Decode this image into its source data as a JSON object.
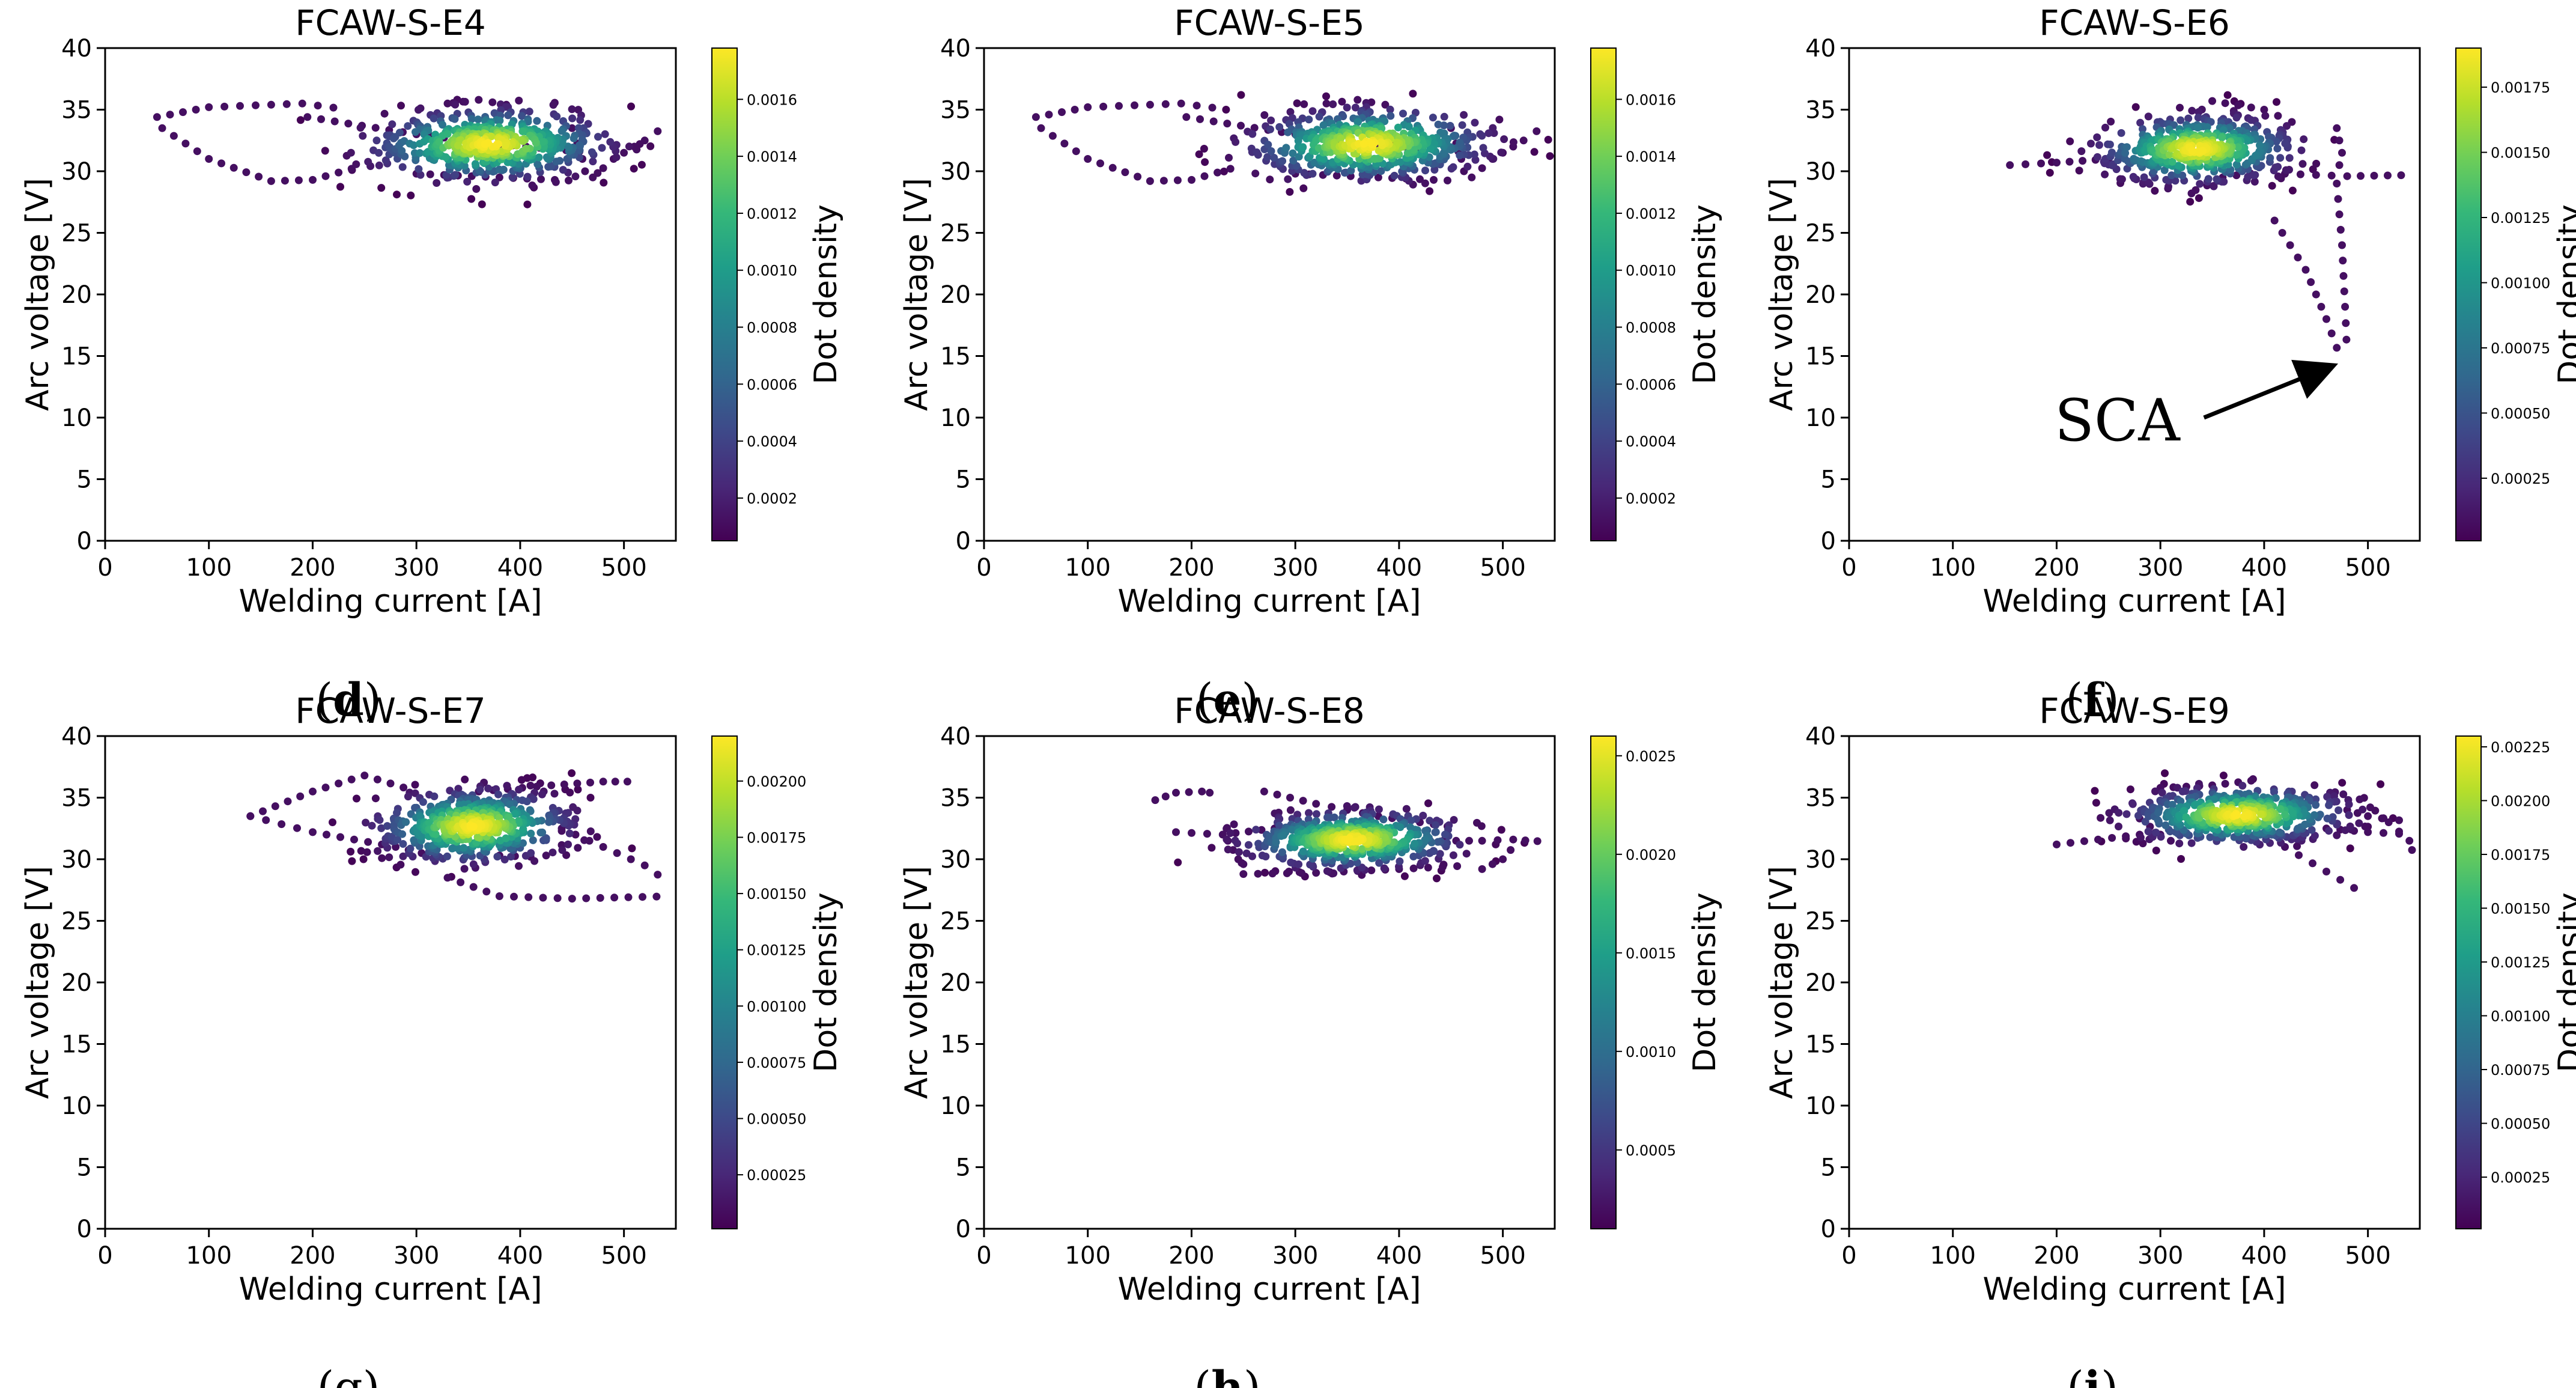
{
  "figure": {
    "colormap": [
      "#440154",
      "#482878",
      "#3e4989",
      "#31688e",
      "#26828e",
      "#1f9e89",
      "#35b779",
      "#6ece58",
      "#b5de2b",
      "#fde725"
    ],
    "axis_color": "#000000",
    "annotation": {
      "text": "SCA",
      "arrow_color": "#000000"
    }
  },
  "chart_data": [
    {
      "type": "scatter",
      "title": "FCAW-S-E4",
      "caption": "(d)",
      "caption_bold": "d",
      "xlabel": "Welding current [A]",
      "ylabel": "Arc voltage [V]",
      "xlim": [
        0,
        550
      ],
      "ylim": [
        0,
        40
      ],
      "xticks": [
        "0",
        "100",
        "200",
        "300",
        "400",
        "500"
      ],
      "yticks": [
        "0",
        "5",
        "10",
        "15",
        "20",
        "25",
        "30",
        "35",
        "40"
      ],
      "colorbar": {
        "label": "Dot density",
        "min": 5e-05,
        "max": 0.00178,
        "ticks": [
          "0.0002",
          "0.0004",
          "0.0006",
          "0.0008",
          "0.0010",
          "0.0012",
          "0.0014",
          "0.0016"
        ]
      },
      "center": [
        370,
        32.2
      ],
      "spread": [
        55,
        1.4
      ],
      "paths": [
        [
          [
            195,
            34.4
          ],
          [
            300,
            33
          ],
          [
            380,
            32.2
          ],
          [
            470,
            31.5
          ]
        ],
        [
          [
            470,
            29.5
          ],
          [
            490,
            31
          ],
          [
            520,
            32.5
          ],
          [
            545,
            34
          ]
        ],
        [
          [
            50,
            34.4
          ],
          [
            100,
            35.2
          ],
          [
            190,
            35.5
          ],
          [
            235,
            35
          ]
        ],
        [
          [
            55,
            33.5
          ],
          [
            100,
            31
          ],
          [
            160,
            29.2
          ],
          [
            200,
            29.3
          ],
          [
            250,
            30.5
          ]
        ],
        [
          [
            300,
            29.8
          ],
          [
            380,
            29.5
          ],
          [
            460,
            29.2
          ]
        ],
        [
          [
            330,
            35.5
          ],
          [
            360,
            35.8
          ],
          [
            400,
            35.2
          ]
        ],
        [
          [
            450,
            33.5
          ],
          [
            460,
            31
          ],
          [
            465,
            29
          ]
        ]
      ]
    },
    {
      "type": "scatter",
      "title": "FCAW-S-E5",
      "caption": "(e)",
      "caption_bold": "e",
      "xlabel": "Welding current [A]",
      "ylabel": "Arc voltage [V]",
      "xlim": [
        0,
        550
      ],
      "ylim": [
        0,
        40
      ],
      "xticks": [
        "0",
        "100",
        "200",
        "300",
        "400",
        "500"
      ],
      "yticks": [
        "0",
        "5",
        "10",
        "15",
        "20",
        "25",
        "30",
        "35",
        "40"
      ],
      "colorbar": {
        "label": "Dot density",
        "min": 5e-05,
        "max": 0.00178,
        "ticks": [
          "0.0002",
          "0.0004",
          "0.0006",
          "0.0008",
          "0.0010",
          "0.0012",
          "0.0014",
          "0.0016"
        ]
      },
      "center": [
        370,
        32.2
      ],
      "spread": [
        55,
        1.4
      ],
      "paths": [
        [
          [
            195,
            34.4
          ],
          [
            300,
            33
          ],
          [
            380,
            32.2
          ],
          [
            470,
            31.5
          ]
        ],
        [
          [
            470,
            29.5
          ],
          [
            490,
            31
          ],
          [
            520,
            32.5
          ],
          [
            545,
            34
          ]
        ],
        [
          [
            50,
            34.4
          ],
          [
            100,
            35.2
          ],
          [
            190,
            35.5
          ],
          [
            235,
            35
          ]
        ],
        [
          [
            55,
            33.5
          ],
          [
            100,
            31
          ],
          [
            160,
            29.2
          ],
          [
            200,
            29.3
          ],
          [
            250,
            30.5
          ]
        ],
        [
          [
            300,
            29.8
          ],
          [
            380,
            29.5
          ],
          [
            460,
            29.2
          ]
        ],
        [
          [
            330,
            35.5
          ],
          [
            360,
            35.8
          ],
          [
            400,
            35.2
          ]
        ],
        [
          [
            450,
            33.5
          ],
          [
            460,
            31
          ],
          [
            465,
            29
          ]
        ]
      ]
    },
    {
      "type": "scatter",
      "title": "FCAW-S-E6",
      "caption": "(f)",
      "caption_bold": "f",
      "xlabel": "Welding current [A]",
      "ylabel": "Arc voltage [V]",
      "xlim": [
        0,
        550
      ],
      "ylim": [
        0,
        40
      ],
      "xticks": [
        "0",
        "100",
        "200",
        "300",
        "400",
        "500"
      ],
      "yticks": [
        "0",
        "5",
        "10",
        "15",
        "20",
        "25",
        "30",
        "35",
        "40"
      ],
      "colorbar": {
        "label": "Dot density",
        "min": 1e-05,
        "max": 0.0019,
        "ticks": [
          "0.00025",
          "0.00050",
          "0.00075",
          "0.00100",
          "0.00125",
          "0.00150",
          "0.00175"
        ]
      },
      "center": [
        335,
        31.8
      ],
      "spread": [
        45,
        1.3
      ],
      "sca_arrow": {
        "from": [
          342,
          10
        ],
        "to": [
          460,
          14
        ]
      },
      "paths": [
        [
          [
            155,
            30.5
          ],
          [
            200,
            30.7
          ],
          [
            250,
            31
          ],
          [
            280,
            31.5
          ]
        ],
        [
          [
            420,
            29.8
          ],
          [
            480,
            29.6
          ],
          [
            545,
            29.7
          ]
        ],
        [
          [
            410,
            26
          ],
          [
            440,
            22
          ],
          [
            460,
            18
          ],
          [
            475,
            14.5
          ]
        ],
        [
          [
            470,
            29
          ],
          [
            475,
            24
          ],
          [
            478,
            19
          ],
          [
            480,
            15
          ]
        ],
        [
          [
            350,
            35.7
          ],
          [
            400,
            35
          ],
          [
            440,
            33.5
          ]
        ],
        [
          [
            470,
            33.5
          ],
          [
            475,
            31.5
          ],
          [
            470,
            29.5
          ]
        ],
        [
          [
            330,
            28.2
          ],
          [
            360,
            29.5
          ],
          [
            400,
            30
          ]
        ]
      ]
    },
    {
      "type": "scatter",
      "title": "FCAW-S-E7",
      "caption": "(g)",
      "caption_bold": "",
      "xlabel": "Welding current [A]",
      "ylabel": "Arc voltage [V]",
      "xlim": [
        0,
        550
      ],
      "ylim": [
        0,
        40
      ],
      "xticks": [
        "0",
        "100",
        "200",
        "300",
        "400",
        "500"
      ],
      "yticks": [
        "0",
        "5",
        "10",
        "15",
        "20",
        "25",
        "30",
        "35",
        "40"
      ],
      "colorbar": {
        "label": "Dot density",
        "min": 1e-05,
        "max": 0.0022,
        "ticks": [
          "0.00025",
          "0.00050",
          "0.00075",
          "0.00100",
          "0.00125",
          "0.00150",
          "0.00175",
          "0.00200"
        ]
      },
      "center": [
        355,
        32.7
      ],
      "spread": [
        45,
        1.4
      ],
      "paths": [
        [
          [
            140,
            33.5
          ],
          [
            200,
            35.5
          ],
          [
            250,
            36.8
          ],
          [
            300,
            35.5
          ]
        ],
        [
          [
            140,
            33.5
          ],
          [
            200,
            32.2
          ],
          [
            280,
            31
          ],
          [
            330,
            30
          ]
        ],
        [
          [
            360,
            35.5
          ],
          [
            430,
            36
          ],
          [
            480,
            36.3
          ],
          [
            515,
            36.3
          ]
        ],
        [
          [
            440,
            32.5
          ],
          [
            480,
            31
          ],
          [
            520,
            29.5
          ],
          [
            545,
            28
          ]
        ],
        [
          [
            330,
            28.5
          ],
          [
            380,
            27
          ],
          [
            450,
            26.8
          ],
          [
            545,
            27
          ]
        ],
        [
          [
            380,
            30.3
          ],
          [
            410,
            30.2
          ],
          [
            440,
            30.4
          ]
        ],
        [
          [
            440,
            32.3
          ],
          [
            440,
            30
          ]
        ]
      ]
    },
    {
      "type": "scatter",
      "title": "FCAW-S-E8",
      "caption": "(h)",
      "caption_bold": "h",
      "xlabel": "Welding current [A]",
      "ylabel": "Arc voltage [V]",
      "xlim": [
        0,
        550
      ],
      "ylim": [
        0,
        40
      ],
      "xticks": [
        "0",
        "100",
        "200",
        "300",
        "400",
        "500"
      ],
      "yticks": [
        "0",
        "5",
        "10",
        "15",
        "20",
        "25",
        "30",
        "35",
        "40"
      ],
      "colorbar": {
        "label": "Dot density",
        "min": 0.0001,
        "max": 0.0026,
        "ticks": [
          "0.0005",
          "0.0010",
          "0.0015",
          "0.0020",
          "0.0025"
        ]
      },
      "center": [
        355,
        31.6
      ],
      "spread": [
        50,
        1.1
      ],
      "paths": [
        [
          [
            165,
            34.8
          ],
          [
            185,
            35.4
          ],
          [
            210,
            35.5
          ],
          [
            225,
            35.3
          ]
        ],
        [
          [
            185,
            32.2
          ],
          [
            230,
            32
          ],
          [
            280,
            32.5
          ],
          [
            320,
            32.8
          ]
        ],
        [
          [
            430,
            31.5
          ],
          [
            480,
            31.5
          ],
          [
            510,
            31.6
          ],
          [
            545,
            31.4
          ]
        ],
        [
          [
            480,
            29.2
          ],
          [
            500,
            30
          ],
          [
            515,
            31.5
          ]
        ],
        [
          [
            250,
            28.8
          ],
          [
            320,
            28.9
          ],
          [
            400,
            29.2
          ],
          [
            470,
            29.5
          ]
        ],
        [
          [
            270,
            35.5
          ],
          [
            320,
            34.5
          ],
          [
            380,
            33.5
          ],
          [
            460,
            32.5
          ]
        ],
        [
          [
            235,
            31.5
          ],
          [
            245,
            30
          ],
          [
            255,
            29.2
          ]
        ]
      ]
    },
    {
      "type": "scatter",
      "title": "FCAW-S-E9",
      "caption": "(i)",
      "caption_bold": "i",
      "xlabel": "Welding current [A]",
      "ylabel": "Arc voltage [V]",
      "xlim": [
        0,
        550
      ],
      "ylim": [
        0,
        40
      ],
      "xticks": [
        "0",
        "100",
        "200",
        "300",
        "400",
        "500"
      ],
      "yticks": [
        "0",
        "5",
        "10",
        "15",
        "20",
        "25",
        "30",
        "35",
        "40"
      ],
      "colorbar": {
        "label": "Dot density",
        "min": 1e-05,
        "max": 0.0023,
        "ticks": [
          "0.00025",
          "0.00050",
          "0.00075",
          "0.00100",
          "0.00125",
          "0.00150",
          "0.00175",
          "0.00200",
          "0.00225"
        ]
      },
      "center": [
        375,
        33.6
      ],
      "spread": [
        50,
        1.1
      ],
      "paths": [
        [
          [
            200,
            31.2
          ],
          [
            240,
            31.6
          ],
          [
            280,
            32
          ],
          [
            310,
            32.3
          ]
        ],
        [
          [
            460,
            32.5
          ],
          [
            500,
            32.2
          ],
          [
            545,
            32
          ]
        ],
        [
          [
            420,
            31
          ],
          [
            460,
            29
          ],
          [
            500,
            27
          ]
        ],
        [
          [
            300,
            35.8
          ],
          [
            350,
            36
          ],
          [
            400,
            36.5
          ]
        ],
        [
          [
            520,
            33
          ],
          [
            540,
            31.5
          ],
          [
            545,
            30
          ]
        ],
        [
          [
            480,
            34
          ],
          [
            500,
            33.5
          ],
          [
            545,
            33
          ]
        ],
        [
          [
            280,
            33.3
          ],
          [
            300,
            32
          ],
          [
            320,
            31
          ]
        ]
      ]
    }
  ]
}
